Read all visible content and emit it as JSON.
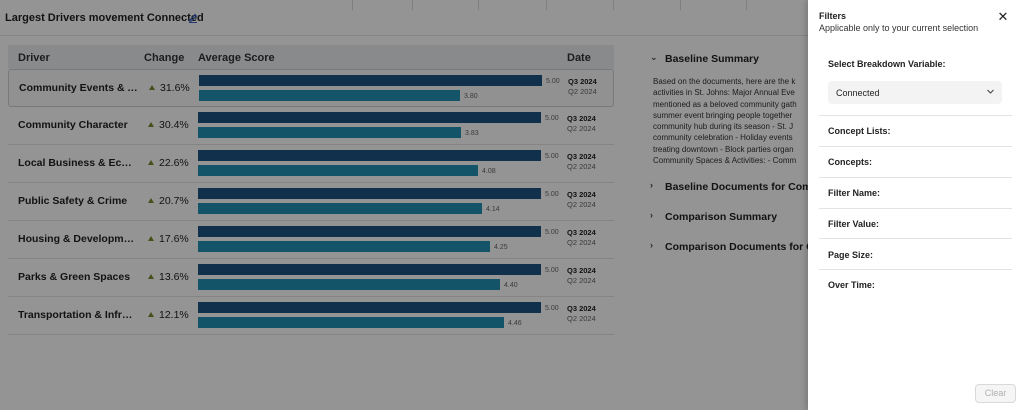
{
  "page": {
    "title": "Largest Drivers movement Connected",
    "edit_icon": "pencil-icon"
  },
  "table": {
    "headers": {
      "driver": "Driver",
      "change": "Change",
      "score": "Average Score",
      "date": "Date"
    },
    "rows": [
      {
        "driver": "Community Events & A...",
        "change": "31.6%",
        "q3_value": 5.0,
        "q3_label": "5.00",
        "q2_value": 3.8,
        "q2_label": "3.80",
        "q3_date": "Q3 2024",
        "q2_date": "Q2 2024"
      },
      {
        "driver": "Community Character",
        "change": "30.4%",
        "q3_value": 5.0,
        "q3_label": "5.00",
        "q2_value": 3.83,
        "q2_label": "3.83",
        "q3_date": "Q3 2024",
        "q2_date": "Q2 2024"
      },
      {
        "driver": "Local Business & Econo...",
        "change": "22.6%",
        "q3_value": 5.0,
        "q3_label": "5.00",
        "q2_value": 4.08,
        "q2_label": "4.08",
        "q3_date": "Q3 2024",
        "q2_date": "Q2 2024"
      },
      {
        "driver": "Public Safety & Crime",
        "change": "20.7%",
        "q3_value": 5.0,
        "q3_label": "5.00",
        "q2_value": 4.14,
        "q2_label": "4.14",
        "q3_date": "Q3 2024",
        "q2_date": "Q2 2024"
      },
      {
        "driver": "Housing & Development",
        "change": "17.6%",
        "q3_value": 5.0,
        "q3_label": "5.00",
        "q2_value": 4.25,
        "q2_label": "4.25",
        "q3_date": "Q3 2024",
        "q2_date": "Q2 2024"
      },
      {
        "driver": "Parks & Green Spaces",
        "change": "13.6%",
        "q3_value": 5.0,
        "q3_label": "5.00",
        "q2_value": 4.4,
        "q2_label": "4.40",
        "q3_date": "Q3 2024",
        "q2_date": "Q2 2024"
      },
      {
        "driver": "Transportation & Infras...",
        "change": "12.1%",
        "q3_value": 5.0,
        "q3_label": "5.00",
        "q2_value": 4.46,
        "q2_label": "4.46",
        "q3_date": "Q3 2024",
        "q2_date": "Q2 2024"
      }
    ],
    "score_max": 5.0,
    "colors": {
      "q3_bar": "#1d5382",
      "q2_bar": "#2391b5",
      "change_up": "#7a8a2a"
    }
  },
  "summary": {
    "baseline_title": "Baseline Summary",
    "baseline_text_lines": [
      "Based on the documents, here are the k",
      "activities in St. Johns: Major Annual Eve",
      "mentioned as a beloved community gath",
      "summer event bringing people together",
      "community hub during its season - St. J",
      "community celebration - Holiday events",
      "treating downtown - Block parties organ",
      "Community Spaces & Activities: - Comm"
    ],
    "sections": [
      "Baseline Documents for Commu",
      "Comparison Summary",
      "Comparison Documents for Com"
    ]
  },
  "filters": {
    "title": "Filters",
    "subtitle": "Applicable only to your current selection",
    "close_icon": "close-icon",
    "breakdown_label": "Select Breakdown Variable:",
    "breakdown_value": "Connected",
    "fields": [
      "Concept Lists:",
      "Concepts:",
      "Filter Name:",
      "Filter Value:",
      "Page Size:",
      "Over Time:"
    ],
    "clear_label": "Clear"
  }
}
